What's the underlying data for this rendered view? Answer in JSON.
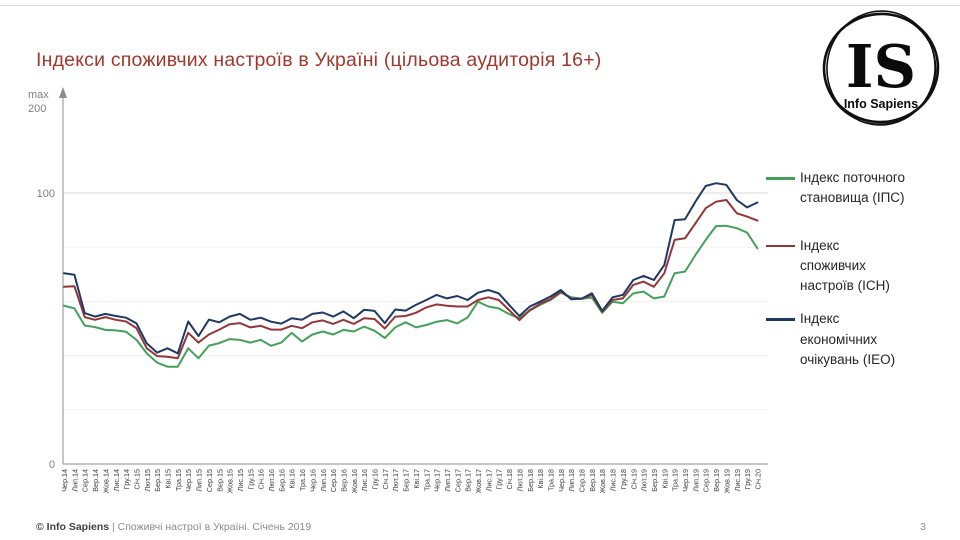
{
  "header": {
    "title": "Індекси споживчих настроїв в Україні (цільова аудиторія 16+)",
    "accent_color": "#a2382c"
  },
  "logo": {
    "monogram": "IS",
    "name": "Info Sapiens"
  },
  "chart_data": {
    "type": "line",
    "title": "Індекси споживчих настроїв в Україні (цільова аудиторія 16+)",
    "legend_position": "right",
    "grid": "horizontal",
    "y_axis": {
      "arrow_label": "max",
      "top_tick": "200",
      "mid_tick": "100",
      "bottom_tick": "0",
      "range": [
        0,
        200
      ],
      "major_gridline": 100,
      "minor_gridlines": [
        20,
        40,
        60,
        80
      ]
    },
    "x_labels": [
      "Чер.14",
      "Лип.14",
      "Сер.14",
      "Вер.14",
      "Жов.14",
      "Лис.14",
      "Гру.14",
      "Січ.15",
      "Лют.15",
      "Бер.15",
      "Кві.15",
      "Тра.15",
      "Чер.15",
      "Лип.15",
      "Сер.15",
      "Вер.15",
      "Жов.15",
      "Лис.15",
      "Гру.15",
      "Січ.16",
      "Лют.16",
      "Бер.16",
      "Кві.16",
      "Тра.16",
      "Чер.16",
      "Лип.16",
      "Сер.16",
      "Вер.16",
      "Жов.16",
      "Лис.16",
      "Гру.16",
      "Січ.17",
      "Лют.17",
      "Бер.17",
      "Кві.17",
      "Тра.17",
      "Чер.17",
      "Лип.17",
      "Сер.17",
      "Вер.17",
      "Жов.17",
      "Лис.17",
      "Гру.17",
      "Січ.18",
      "Лют.18",
      "Бер.18",
      "Кві.18",
      "Тра.18",
      "Чер.18",
      "Лип.18",
      "Сер.18",
      "Вер.18",
      "Жов.18",
      "Лис.18",
      "Гру.18",
      "Січ.19",
      "Лют.19",
      "Бер.19",
      "Кві.19",
      "Тра.19",
      "Чер.19",
      "Лип.19",
      "Сер.19",
      "Вер.19",
      "Жов.19",
      "Лис.19",
      "Гру.19",
      "Січ.20"
    ],
    "series": [
      {
        "name": "Індекс поточного становища (ІПС)",
        "label_lines": [
          "Індекс поточного",
          "становища (ІПС)"
        ],
        "color": "#45a05c",
        "values": [
          58.4,
          57.4,
          51.1,
          50.5,
          49.5,
          49.3,
          48.8,
          45.8,
          40.8,
          37.4,
          35.9,
          35.9,
          42.7,
          39.0,
          43.7,
          44.6,
          46.1,
          45.8,
          44.8,
          45.8,
          43.6,
          44.8,
          48.4,
          45.2,
          47.8,
          48.9,
          47.8,
          49.5,
          48.9,
          50.7,
          49.2,
          46.5,
          50.4,
          52.3,
          50.4,
          51.3,
          52.5,
          53.1,
          51.9,
          54.1,
          59.9,
          58.1,
          57.4,
          55.3,
          53.8,
          56.6,
          58.7,
          60.5,
          63.2,
          61.5,
          61.0,
          61.4,
          55.8,
          59.9,
          59.3,
          63.0,
          63.6,
          61.1,
          61.8,
          70.4,
          71.0,
          77.1,
          82.7,
          87.8,
          87.9,
          87.0,
          85.4,
          79.6
        ]
      },
      {
        "name": "Індекс споживчих настроїв (ІСН)",
        "label_lines": [
          "Індекс",
          "споживчих",
          "настроїв (ІСН)"
        ],
        "color": "#943638",
        "values": [
          65.4,
          65.6,
          54.2,
          53.2,
          54.2,
          53.2,
          52.6,
          50.1,
          42.7,
          39.8,
          39.6,
          39.0,
          48.4,
          44.8,
          47.8,
          49.6,
          51.6,
          52.0,
          50.4,
          51.0,
          49.6,
          49.6,
          51.0,
          50.1,
          52.3,
          53.0,
          51.7,
          53.2,
          51.7,
          53.8,
          53.5,
          50.0,
          54.4,
          54.6,
          55.8,
          57.8,
          58.9,
          58.4,
          58.1,
          58.1,
          60.5,
          61.5,
          60.5,
          56.8,
          53.1,
          56.8,
          59.1,
          60.8,
          63.6,
          61.1,
          61.0,
          62.4,
          56.2,
          60.5,
          61.1,
          66.1,
          67.3,
          65.4,
          70.4,
          82.7,
          83.3,
          88.8,
          94.4,
          96.8,
          97.4,
          92.5,
          91.3,
          89.8
        ]
      },
      {
        "name": "Індекс економічних очікувань (ІЕО)",
        "label_lines": [
          "Індекс",
          "економічних",
          "очікувань (ІЕО)"
        ],
        "color": "#1f3864",
        "values": [
          70.4,
          69.8,
          55.7,
          54.4,
          55.4,
          54.6,
          54.0,
          51.9,
          44.5,
          41.1,
          42.7,
          40.8,
          52.6,
          47.2,
          53.3,
          52.3,
          54.4,
          55.4,
          53.2,
          54.0,
          52.5,
          51.8,
          53.8,
          53.2,
          55.4,
          55.9,
          54.4,
          56.3,
          53.8,
          56.9,
          56.5,
          52.0,
          57.0,
          56.6,
          58.7,
          60.5,
          62.4,
          61.1,
          62.0,
          60.5,
          63.2,
          64.2,
          63.0,
          58.7,
          54.6,
          58.1,
          59.9,
          61.8,
          64.2,
          60.8,
          61.0,
          63.0,
          56.5,
          61.5,
          62.4,
          67.9,
          69.4,
          67.9,
          73.4,
          90.0,
          90.3,
          96.8,
          102.6,
          103.6,
          103.0,
          97.4,
          94.7,
          96.5
        ]
      }
    ]
  },
  "footer": {
    "copyright": "© Info Sapiens",
    "separator": " | ",
    "text": "Споживчі настрої в Україні. Січень 2019",
    "page_number": "3"
  }
}
